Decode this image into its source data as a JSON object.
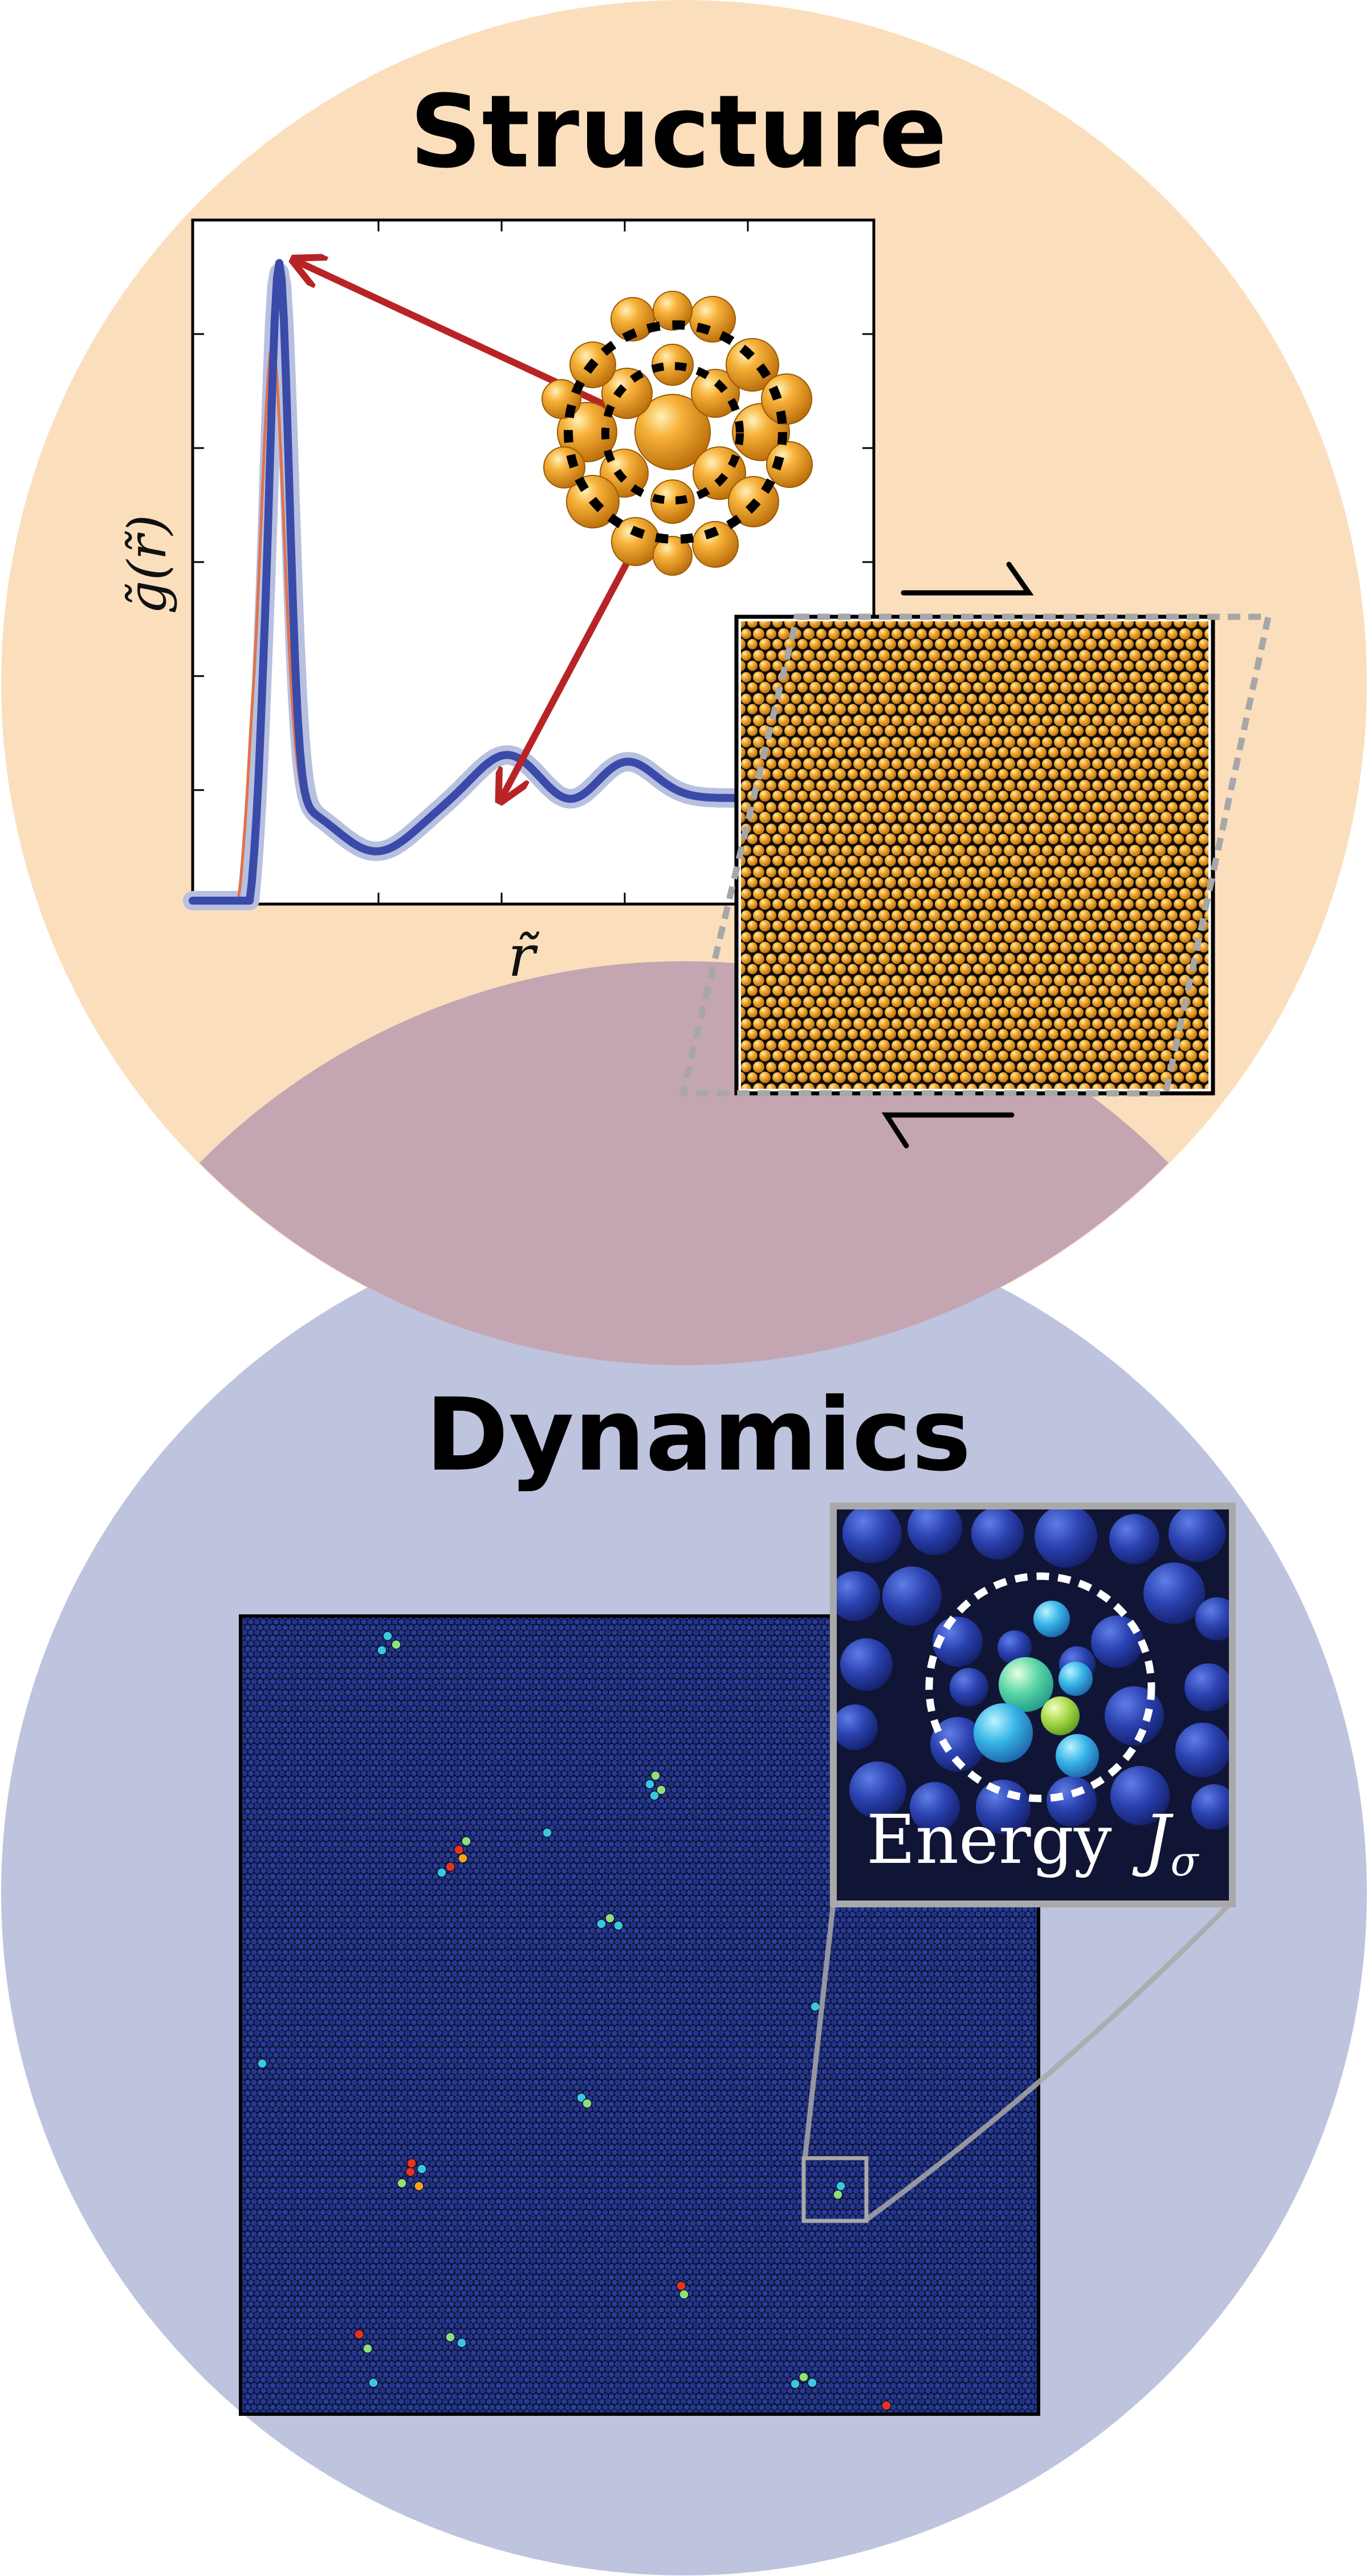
{
  "titles": {
    "structure": "Structure",
    "dynamics": "Dynamics"
  },
  "plot": {
    "ylabel": "g̃(r̃)",
    "xlabel": "r̃"
  },
  "inset": {
    "label_main": "Energy ",
    "label_symbol": "J",
    "label_sub": "σ"
  },
  "colors": {
    "structure_bg": "#fbdfbd",
    "dynamics_bg": "#bec3de",
    "overlap": "#c4a6b2",
    "curve_blue": "#3a4aa8",
    "curve_band": "#b8c0e0",
    "curve_red": "#e0734d",
    "arrow_red": "#b82425",
    "particle_orange": "#f4a21c",
    "particle_dark": "#0c0c0c",
    "field_blue": "#1d2c78",
    "hot_cyan": "#39c8e0",
    "hot_green": "#8fe07a",
    "hot_red": "#e8341c"
  },
  "icons": [
    "shear-arrow-top-icon",
    "shear-arrow-bottom-icon",
    "arrow-icon",
    "cluster-icon",
    "dashed-circle-icon"
  ]
}
